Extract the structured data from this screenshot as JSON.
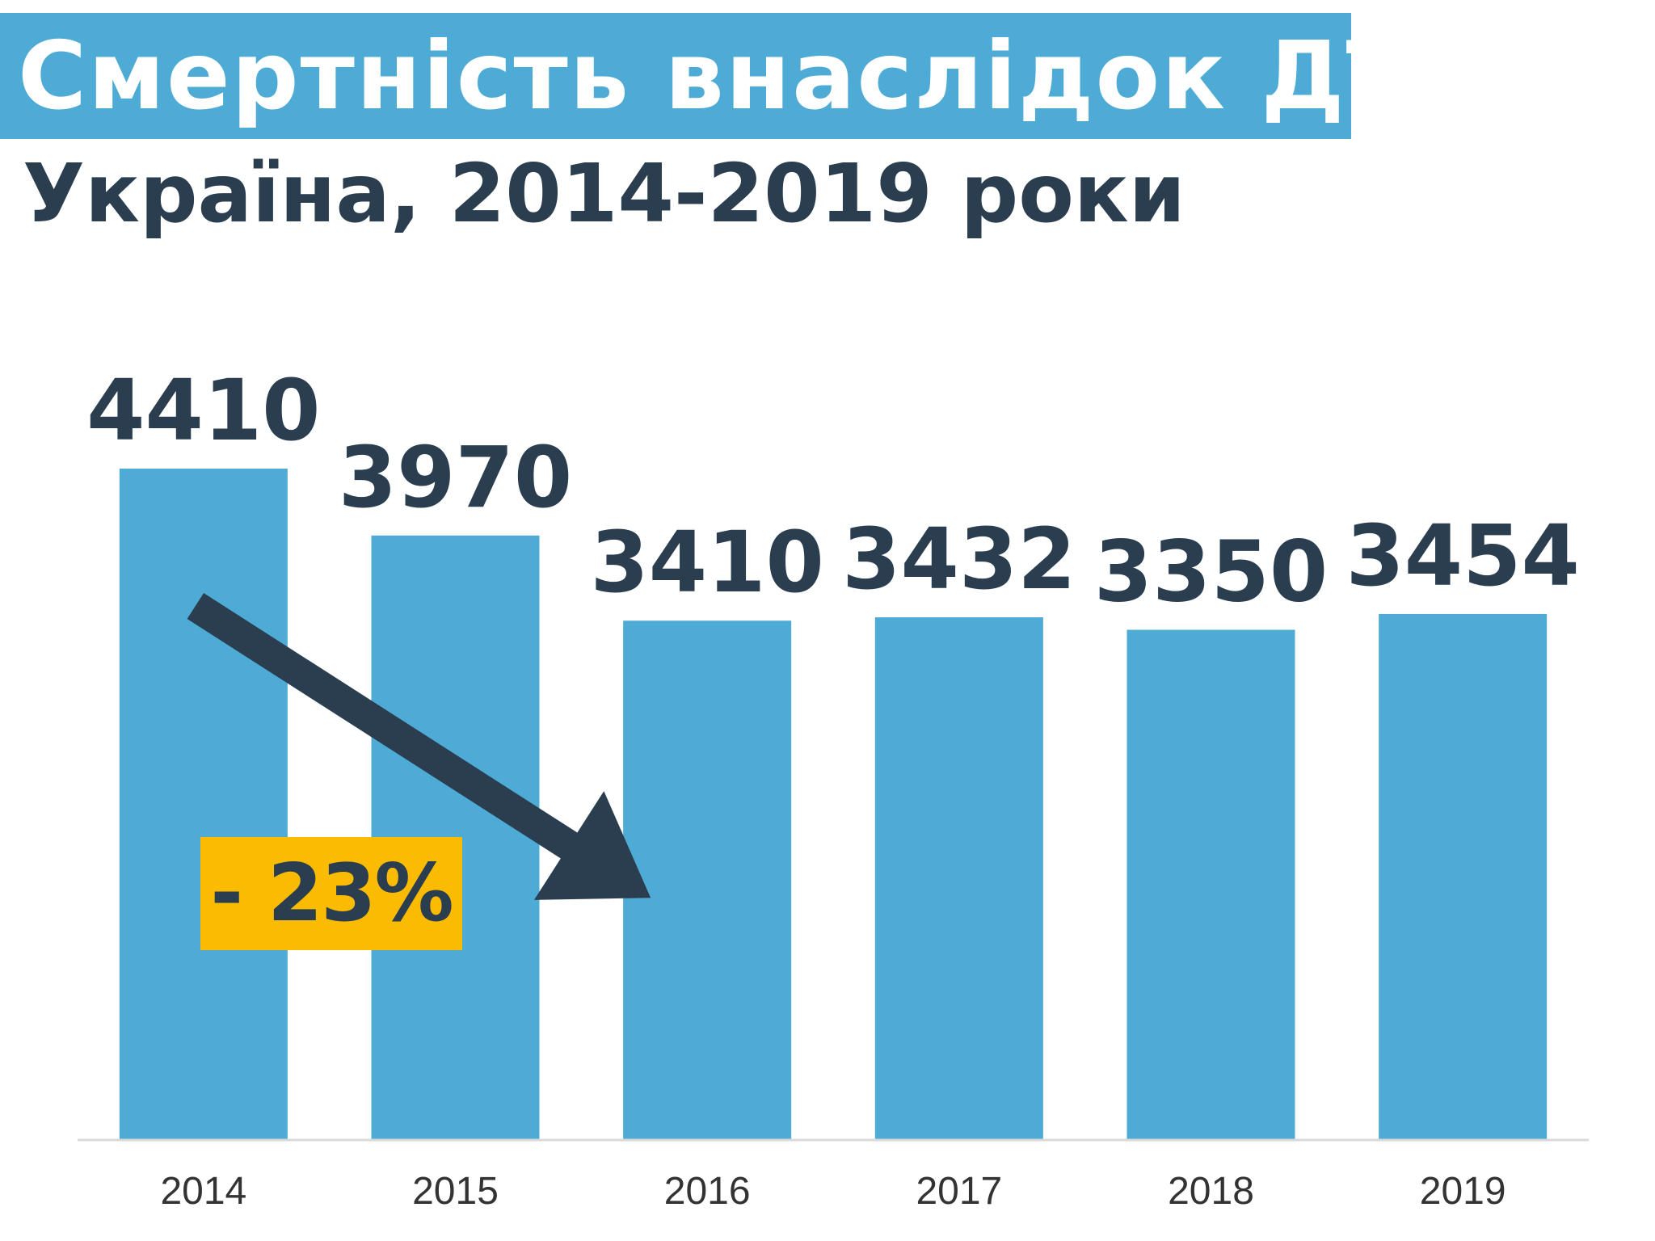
{
  "header": {
    "title": "Смертність внаслідок ДТП",
    "subtitle": "Україна, 2014-2019 роки"
  },
  "annotation": {
    "change_label": "- 23%"
  },
  "colors": {
    "bar": "#4eabd6",
    "title_background": "#4eabd6",
    "text_dark": "#2b3e50",
    "badge": "#fbbb00",
    "axis": "#d9d9d9",
    "tick_text": "#333333"
  },
  "chart_data": {
    "type": "bar",
    "title": "Смертність внаслідок ДТП",
    "subtitle": "Україна, 2014-2019 роки",
    "categories": [
      "2014",
      "2015",
      "2016",
      "2017",
      "2018",
      "2019"
    ],
    "values": [
      4410,
      3970,
      3410,
      3432,
      3350,
      3454
    ],
    "data_labels": [
      "4410",
      "3970",
      "3410",
      "3432",
      "3350",
      "3454"
    ],
    "xlabel": "",
    "ylabel": "",
    "ylim": [
      0,
      4410
    ],
    "grid": false,
    "legend": "none",
    "annotation": {
      "text": "- 23%",
      "arrow": "downward trend from 2014 to 2016"
    }
  }
}
